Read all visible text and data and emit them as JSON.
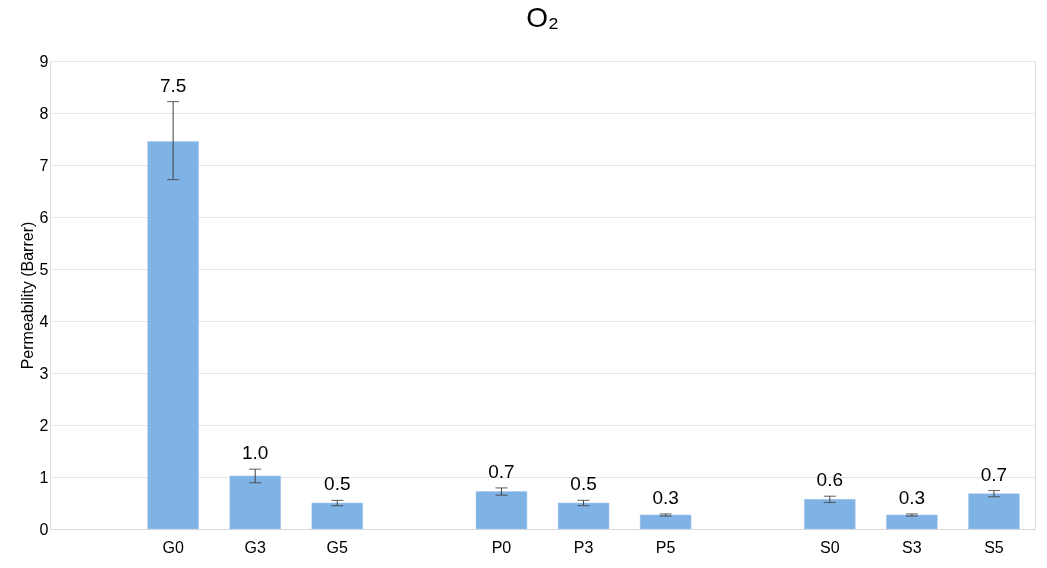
{
  "chart_data": {
    "type": "bar",
    "title": "O₂",
    "ylabel": "Permeability (Barrer)",
    "categories": [
      null,
      "G0",
      "G3",
      "G5",
      null,
      "P0",
      "P3",
      "P5",
      null,
      "S0",
      "S3",
      "S5"
    ],
    "series": [
      {
        "color": "#7fb2e5",
        "values": [
          null,
          7.45,
          1.02,
          0.5,
          null,
          0.72,
          0.5,
          0.27,
          null,
          0.57,
          0.27,
          0.68
        ],
        "errors": [
          null,
          [
            6.72,
            8.22
          ],
          0.13,
          0.05,
          null,
          0.07,
          0.05,
          0.02,
          null,
          0.06,
          0.02,
          0.06
        ],
        "value_labels": [
          null,
          "7.5",
          "1.0",
          "0.5",
          null,
          "0.7",
          "0.5",
          "0.3",
          null,
          "0.6",
          "0.3",
          "0.7"
        ]
      }
    ],
    "ylim": [
      0,
      9
    ],
    "yticks": [
      0,
      1,
      2,
      3,
      4,
      5,
      6,
      7,
      8,
      9
    ],
    "grid": "y"
  }
}
